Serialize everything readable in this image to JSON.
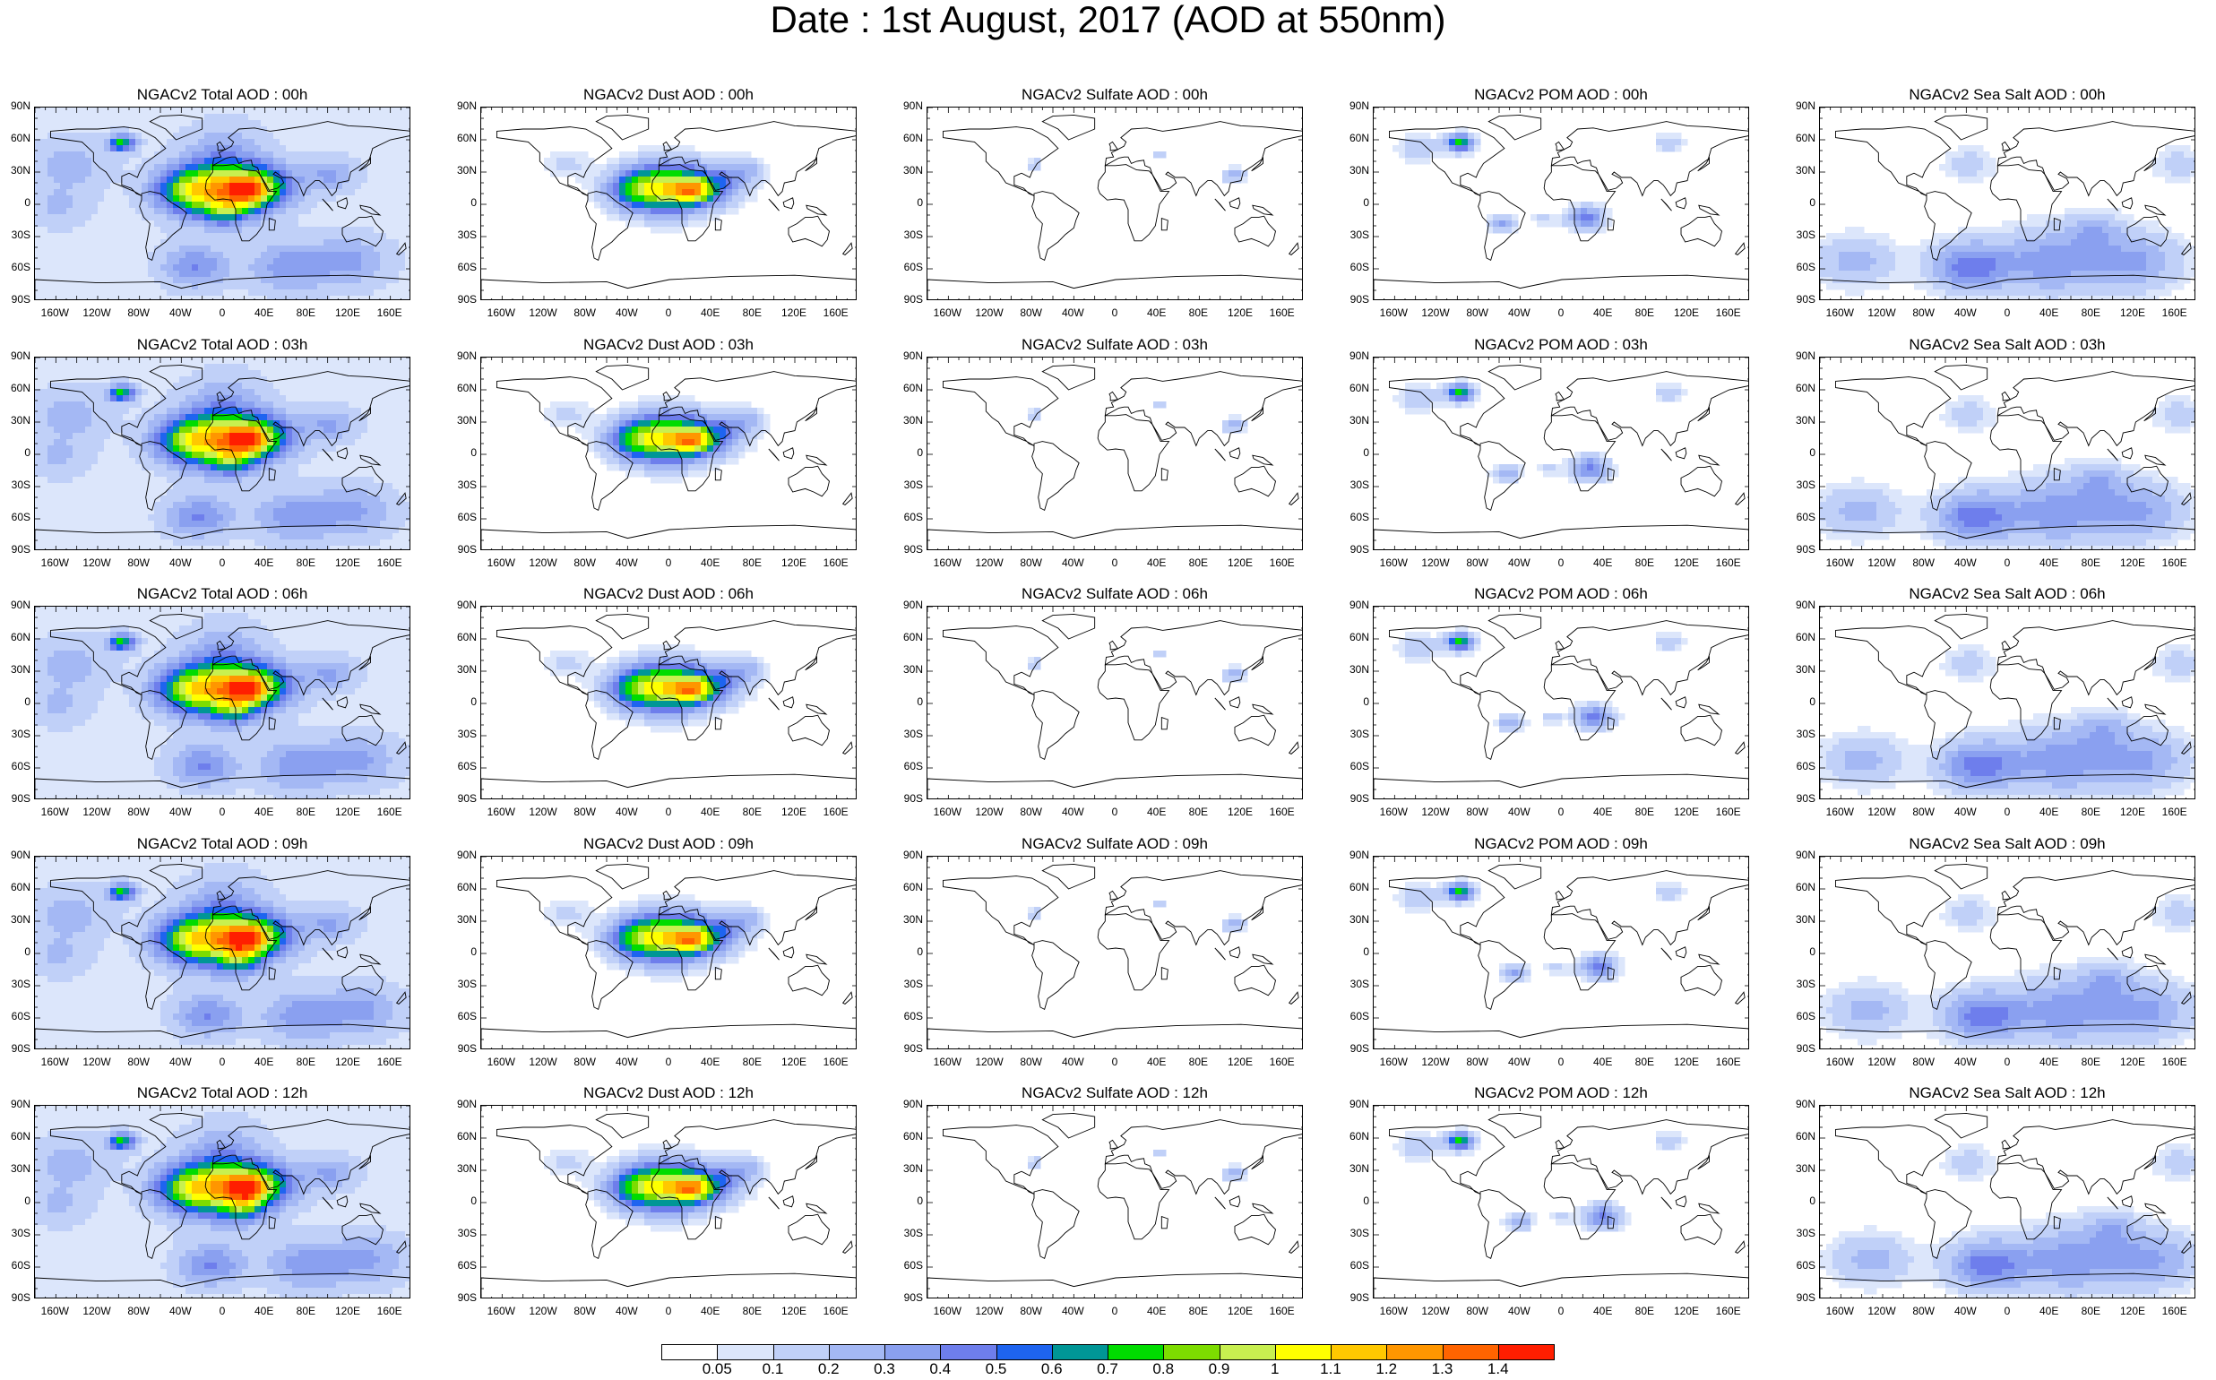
{
  "title": "Date : 1st August, 2017 (AOD at 550nm)",
  "axis": {
    "lat_ticks": [
      "90N",
      "60N",
      "30N",
      "0",
      "30S",
      "60S",
      "90S"
    ],
    "lon_ticks": [
      "160W",
      "120W",
      "80W",
      "40W",
      "0",
      "40E",
      "80E",
      "120E",
      "160E"
    ]
  },
  "panel_titles": [
    [
      "NGACv2 Total AOD : 00h",
      "NGACv2 Dust AOD : 00h",
      "NGACv2 Sulfate AOD : 00h",
      "NGACv2 POM AOD : 00h",
      "NGACv2 Sea Salt AOD : 00h"
    ],
    [
      "NGACv2 Total AOD : 03h",
      "NGACv2 Dust AOD : 03h",
      "NGACv2 Sulfate AOD : 03h",
      "NGACv2 POM AOD : 03h",
      "NGACv2 Sea Salt AOD : 03h"
    ],
    [
      "NGACv2 Total AOD : 06h",
      "NGACv2 Dust AOD : 06h",
      "NGACv2 Sulfate AOD : 06h",
      "NGACv2 POM AOD : 06h",
      "NGACv2 Sea Salt AOD : 06h"
    ],
    [
      "NGACv2 Total AOD : 09h",
      "NGACv2 Dust AOD : 09h",
      "NGACv2 Sulfate AOD : 09h",
      "NGACv2 POM AOD : 09h",
      "NGACv2 Sea Salt  AOD : 09h"
    ],
    [
      "NGACv2 Total AOD  : 12h",
      "NGACv2 Dust AOD : 12h",
      "NGACv2 Sulfate AOD : 12h",
      "NGACv2 POM  AOD : 12h",
      "NGACv2 Sea Salt  AOD : 12h"
    ]
  ],
  "species": [
    "total",
    "dust",
    "sulfate",
    "pom",
    "seasalt"
  ],
  "colorbar": {
    "labels": [
      "0.05",
      "0.1",
      "0.2",
      "0.3",
      "0.4",
      "0.5",
      "0.6",
      "0.7",
      "0.8",
      "0.9",
      "1",
      "1.1",
      "1.2",
      "1.3",
      "1.4"
    ],
    "colors": [
      "#ffffff",
      "#dce6fb",
      "#c0d0f8",
      "#a4b8f4",
      "#8aa0f0",
      "#6e7eec",
      "#1e64f0",
      "#009696",
      "#00dc00",
      "#7ddc00",
      "#c8f050",
      "#ffff00",
      "#ffc800",
      "#ff9600",
      "#ff6400",
      "#ff1e00"
    ]
  }
}
